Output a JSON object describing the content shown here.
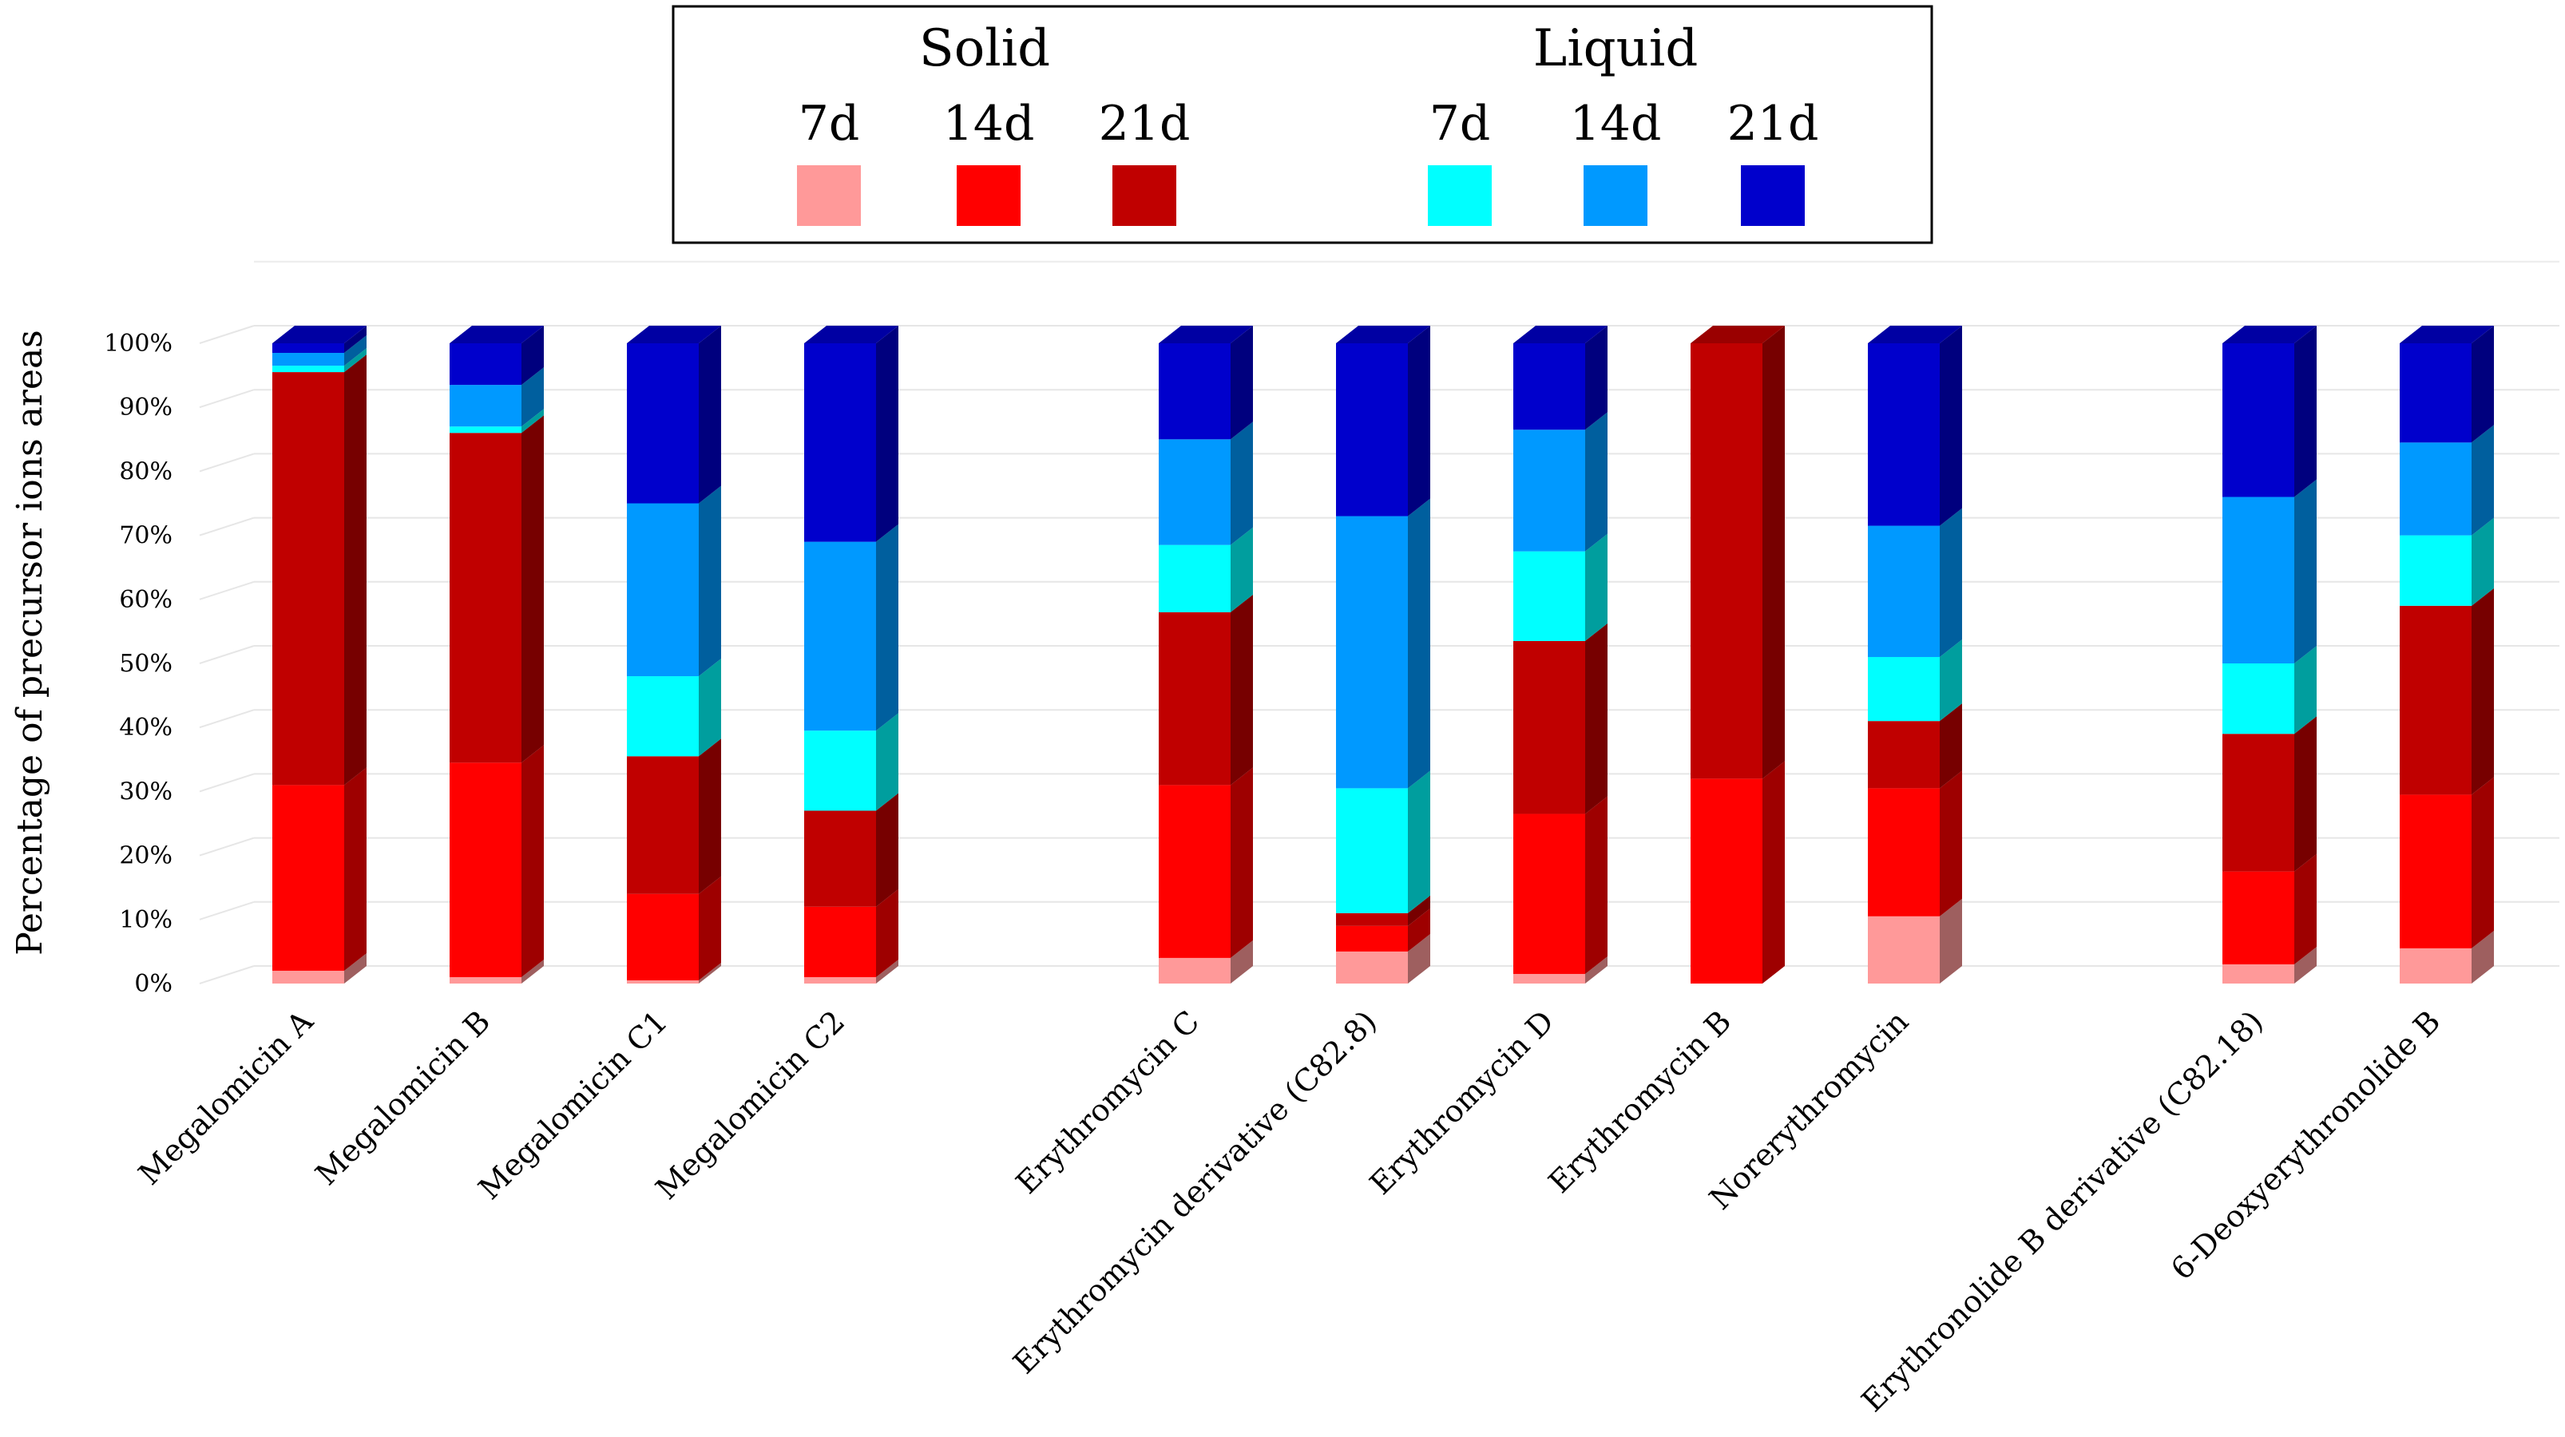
{
  "chart_data": {
    "type": "bar",
    "stacked": true,
    "percent": true,
    "ylabel": "Percentage of precursor ions areas",
    "xlabel": "",
    "ylim": [
      0,
      100
    ],
    "yticks": [
      "0%",
      "10%",
      "20%",
      "30%",
      "40%",
      "50%",
      "60%",
      "70%",
      "80%",
      "90%",
      "100%"
    ],
    "grid": true,
    "legend": {
      "placement": "top-center",
      "groups": [
        {
          "title": "Solid",
          "items": [
            "7d",
            "14d",
            "21d"
          ]
        },
        {
          "title": "Liquid",
          "items": [
            "7d",
            "14d",
            "21d"
          ]
        }
      ]
    },
    "categories": [
      "Megalomicin A",
      "Megalomicin B",
      "Megalomicin C1",
      "Megalomicin C2",
      "Erythromycin C",
      "Erythromycin derivative (C82.8)",
      "Erythromycin D",
      "Erythromycin B",
      "Norerythromycin",
      "Erythronolide B derivative (C82.18)",
      "6-Deoxyerythronolide B"
    ],
    "category_groups": [
      [
        0,
        1,
        2,
        3
      ],
      [
        4,
        5,
        6,
        7,
        8
      ],
      [
        9,
        10
      ]
    ],
    "series": [
      {
        "name": "Solid 7d",
        "color": "#ff9999",
        "values": [
          2,
          1,
          0.5,
          1,
          4,
          5,
          1.5,
          0,
          10.5,
          3,
          5.5
        ]
      },
      {
        "name": "Solid 14d",
        "color": "#ff0000",
        "values": [
          29,
          33.5,
          13.5,
          11,
          27,
          4,
          25,
          32,
          20,
          14.5,
          24
        ]
      },
      {
        "name": "Solid 21d",
        "color": "#c00000",
        "values": [
          64.5,
          51.5,
          21.5,
          15,
          27,
          2,
          27,
          68,
          10.5,
          21.5,
          29.5
        ]
      },
      {
        "name": "Liquid 7d",
        "color": "#00ffff",
        "values": [
          1,
          1,
          12.5,
          12.5,
          10.5,
          19.5,
          14,
          0,
          10,
          11,
          11
        ]
      },
      {
        "name": "Liquid 14d",
        "color": "#0099ff",
        "values": [
          2,
          6.5,
          27,
          29.5,
          16.5,
          42.5,
          19,
          0,
          20.5,
          26,
          14.5
        ]
      },
      {
        "name": "Liquid 21d",
        "color": "#0000cc",
        "values": [
          1.5,
          6.5,
          25,
          31,
          15,
          27,
          13.5,
          0,
          28.5,
          24,
          15.5
        ]
      }
    ]
  }
}
